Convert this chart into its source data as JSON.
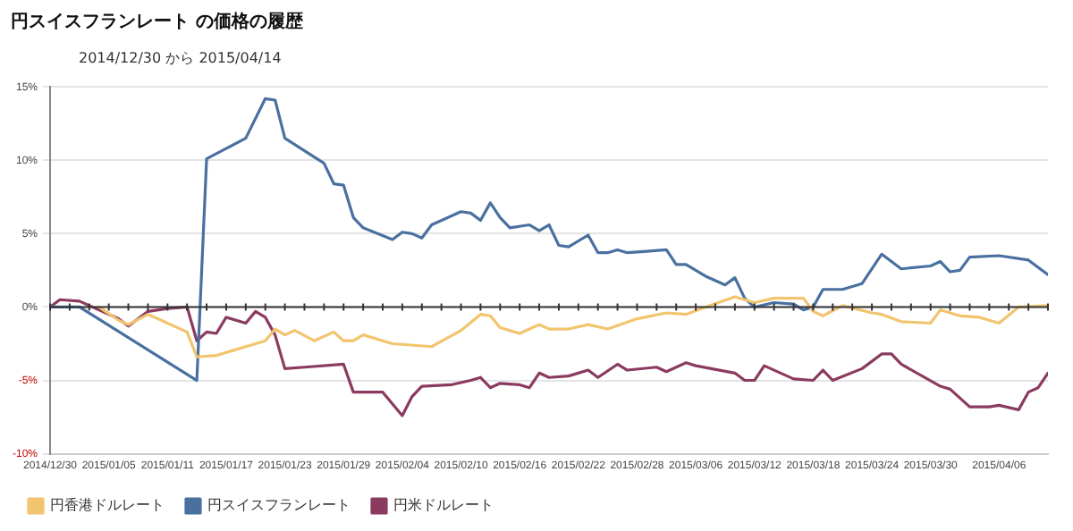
{
  "chart_data": {
    "type": "line",
    "title": "円スイスフランレート の価格の履歴",
    "subtitle": "2014/12/30 から 2015/04/14",
    "xlim": [
      "2014-12-30",
      "2015-04-11"
    ],
    "xticks": [
      {
        "value": "2014-12-30",
        "label": "2014/12/30"
      },
      {
        "value": "2015-01-05",
        "label": "2015/01/05"
      },
      {
        "value": "2015-01-11",
        "label": "2015/01/11"
      },
      {
        "value": "2015-01-17",
        "label": "2015/01/17"
      },
      {
        "value": "2015-01-23",
        "label": "2015/01/23"
      },
      {
        "value": "2015-01-29",
        "label": "2015/01/29"
      },
      {
        "value": "2015-02-04",
        "label": "2015/02/04"
      },
      {
        "value": "2015-02-10",
        "label": "2015/02/10"
      },
      {
        "value": "2015-02-16",
        "label": "2015/02/16"
      },
      {
        "value": "2015-02-22",
        "label": "2015/02/22"
      },
      {
        "value": "2015-02-28",
        "label": "2015/02/28"
      },
      {
        "value": "2015-03-06",
        "label": "2015/03/06"
      },
      {
        "value": "2015-03-12",
        "label": "2015/03/12"
      },
      {
        "value": "2015-03-18",
        "label": "2015/03/18"
      },
      {
        "value": "2015-03-24",
        "label": "2015/03/24"
      },
      {
        "value": "2015-03-30",
        "label": "2015/03/30"
      },
      {
        "value": "2015-04-06",
        "label": "2015/04/06"
      }
    ],
    "ylim": [
      -10,
      15
    ],
    "yticks": [
      {
        "value": -10,
        "label": "-10%"
      },
      {
        "value": -5,
        "label": "-5%"
      },
      {
        "value": 0,
        "label": "0%"
      },
      {
        "value": 5,
        "label": "5%"
      },
      {
        "value": 10,
        "label": "10%"
      },
      {
        "value": 15,
        "label": "15%"
      }
    ],
    "grid": "y",
    "legend": "bottom left",
    "marker": "none",
    "line_style": "solid",
    "ref_lines": [
      {
        "axis": "y",
        "value": 0,
        "color": "#333333"
      }
    ],
    "series": [
      {
        "name": "円香港ドルレート",
        "color": "#f2c46e",
        "x": [
          "2015-01-04",
          "2015-01-06",
          "2015-01-07",
          "2015-01-09",
          "2015-01-10",
          "2015-01-13",
          "2015-01-14",
          "2015-01-16",
          "2015-01-21",
          "2015-01-22",
          "2015-01-23",
          "2015-01-24",
          "2015-01-26",
          "2015-01-28",
          "2015-01-29",
          "2015-01-30",
          "2015-01-31",
          "2015-02-03",
          "2015-02-07",
          "2015-02-10",
          "2015-02-12",
          "2015-02-13",
          "2015-02-14",
          "2015-02-16",
          "2015-02-17",
          "2015-02-18",
          "2015-02-19",
          "2015-02-21",
          "2015-02-23",
          "2015-02-25",
          "2015-02-28",
          "2015-03-03",
          "2015-03-05",
          "2015-03-07",
          "2015-03-10",
          "2015-03-12",
          "2015-03-14",
          "2015-03-17",
          "2015-03-18",
          "2015-03-19",
          "2015-03-21",
          "2015-03-24",
          "2015-03-25",
          "2015-03-27",
          "2015-03-30",
          "2015-03-31",
          "2015-04-02",
          "2015-04-04",
          "2015-04-06",
          "2015-04-08",
          "2015-04-11"
        ],
        "values": [
          0,
          -0.9,
          -1.2,
          -0.5,
          -0.8,
          -1.7,
          -3.4,
          -3.3,
          -2.3,
          -1.5,
          -1.9,
          -1.6,
          -2.3,
          -1.7,
          -2.3,
          -2.3,
          -1.9,
          -2.5,
          -2.7,
          -1.6,
          -0.5,
          -0.6,
          -1.4,
          -1.8,
          -1.5,
          -1.2,
          -1.5,
          -1.5,
          -1.2,
          -1.5,
          -0.8,
          -0.4,
          -0.5,
          0,
          0.7,
          0.3,
          0.6,
          0.6,
          -0.3,
          -0.6,
          0.1,
          -0.4,
          -0.5,
          -1,
          -1.1,
          -0.2,
          -0.6,
          -0.7,
          -1.1,
          0,
          0.1
        ]
      },
      {
        "name": "円スイスフランレート",
        "color": "#4a70a0",
        "x": [
          "2014-12-30",
          "2015-01-02",
          "2015-01-14",
          "2015-01-15",
          "2015-01-19",
          "2015-01-21",
          "2015-01-22",
          "2015-01-23",
          "2015-01-27",
          "2015-01-28",
          "2015-01-29",
          "2015-01-30",
          "2015-01-31",
          "2015-02-03",
          "2015-02-04",
          "2015-02-05",
          "2015-02-06",
          "2015-02-07",
          "2015-02-10",
          "2015-02-11",
          "2015-02-12",
          "2015-02-13",
          "2015-02-14",
          "2015-02-15",
          "2015-02-17",
          "2015-02-18",
          "2015-02-19",
          "2015-02-20",
          "2015-02-21",
          "2015-02-23",
          "2015-02-24",
          "2015-02-25",
          "2015-02-26",
          "2015-02-27",
          "2015-03-01",
          "2015-03-03",
          "2015-03-04",
          "2015-03-05",
          "2015-03-07",
          "2015-03-09",
          "2015-03-10",
          "2015-03-11",
          "2015-03-12",
          "2015-03-14",
          "2015-03-16",
          "2015-03-17",
          "2015-03-18",
          "2015-03-19",
          "2015-03-21",
          "2015-03-23",
          "2015-03-25",
          "2015-03-27",
          "2015-03-30",
          "2015-03-31",
          "2015-04-01",
          "2015-04-02",
          "2015-04-03",
          "2015-04-06",
          "2015-04-09",
          "2015-04-11"
        ],
        "values": [
          0,
          0,
          -5,
          10.1,
          11.5,
          14.2,
          14.1,
          11.5,
          9.8,
          8.4,
          8.3,
          6.1,
          5.4,
          4.6,
          5.1,
          5,
          4.7,
          5.6,
          6.5,
          6.4,
          5.9,
          7.1,
          6.1,
          5.4,
          5.6,
          5.2,
          5.6,
          4.2,
          4.1,
          4.9,
          3.7,
          3.7,
          3.9,
          3.7,
          3.8,
          3.9,
          2.9,
          2.9,
          2.1,
          1.5,
          2,
          0.6,
          0,
          0.3,
          0.2,
          -0.2,
          0,
          1.2,
          1.2,
          1.6,
          3.6,
          2.6,
          2.8,
          3.1,
          2.4,
          2.5,
          3.4,
          3.5,
          3.2,
          2.2
        ]
      },
      {
        "name": "円米ドルレート",
        "color": "#8a3b5f",
        "x": [
          "2014-12-30",
          "2014-12-31",
          "2015-01-02",
          "2015-01-06",
          "2015-01-07",
          "2015-01-09",
          "2015-01-11",
          "2015-01-13",
          "2015-01-14",
          "2015-01-15",
          "2015-01-16",
          "2015-01-17",
          "2015-01-19",
          "2015-01-20",
          "2015-01-21",
          "2015-01-22",
          "2015-01-23",
          "2015-01-25",
          "2015-01-29",
          "2015-01-30",
          "2015-02-02",
          "2015-02-04",
          "2015-02-05",
          "2015-02-06",
          "2015-02-09",
          "2015-02-11",
          "2015-02-12",
          "2015-02-13",
          "2015-02-14",
          "2015-02-16",
          "2015-02-17",
          "2015-02-18",
          "2015-02-19",
          "2015-02-21",
          "2015-02-23",
          "2015-02-24",
          "2015-02-26",
          "2015-02-27",
          "2015-03-02",
          "2015-03-03",
          "2015-03-05",
          "2015-03-06",
          "2015-03-10",
          "2015-03-11",
          "2015-03-12",
          "2015-03-13",
          "2015-03-16",
          "2015-03-18",
          "2015-03-19",
          "2015-03-20",
          "2015-03-23",
          "2015-03-25",
          "2015-03-26",
          "2015-03-27",
          "2015-03-31",
          "2015-04-01",
          "2015-04-03",
          "2015-04-05",
          "2015-04-06",
          "2015-04-08",
          "2015-04-09",
          "2015-04-10",
          "2015-04-11"
        ],
        "values": [
          0,
          0.5,
          0.4,
          -0.8,
          -1.3,
          -0.3,
          -0.1,
          0,
          -2.3,
          -1.7,
          -1.8,
          -0.7,
          -1.1,
          -0.3,
          -0.7,
          -1.9,
          -4.2,
          -4.1,
          -3.9,
          -5.8,
          -5.8,
          -7.4,
          -6.1,
          -5.4,
          -5.3,
          -5,
          -4.8,
          -5.5,
          -5.2,
          -5.3,
          -5.5,
          -4.5,
          -4.8,
          -4.7,
          -4.3,
          -4.8,
          -3.9,
          -4.3,
          -4.1,
          -4.4,
          -3.8,
          -4,
          -4.5,
          -5,
          -5,
          -4,
          -4.9,
          -5,
          -4.3,
          -5,
          -4.2,
          -3.2,
          -3.2,
          -3.9,
          -5.4,
          -5.6,
          -6.8,
          -6.8,
          -6.7,
          -7,
          -5.8,
          -5.5,
          -4.5
        ]
      }
    ]
  }
}
